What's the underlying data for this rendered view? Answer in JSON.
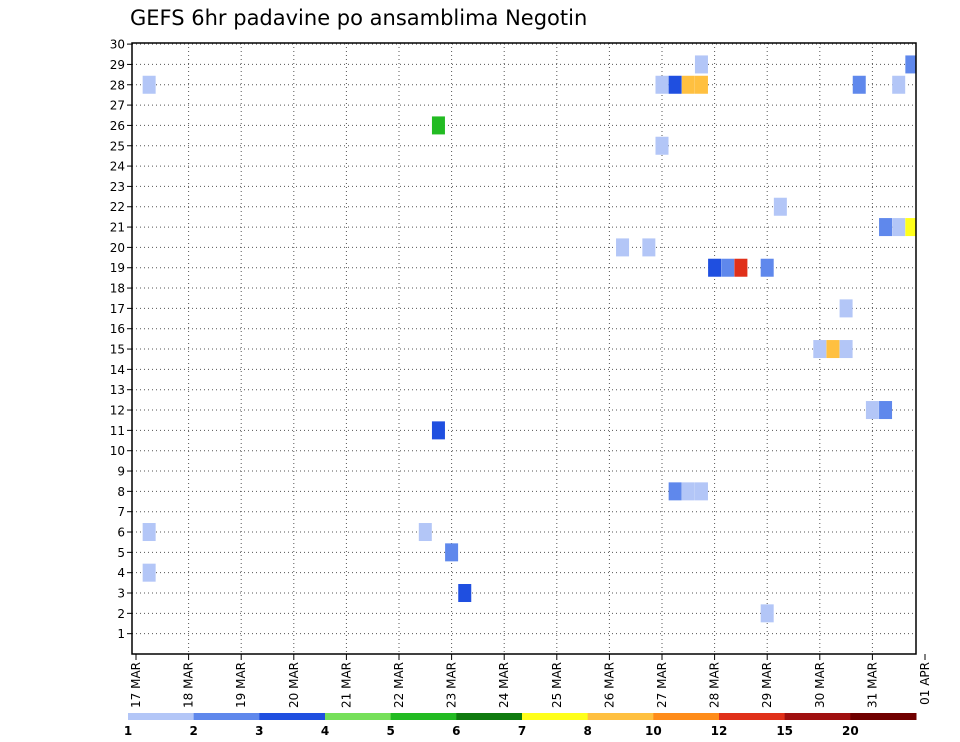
{
  "chart_data": {
    "type": "heatmap",
    "title": "GEFS 6hr padavine po ansamblima Negotin",
    "y_tick_labels": [
      "1",
      "2",
      "3",
      "4",
      "5",
      "6",
      "7",
      "8",
      "9",
      "10",
      "11",
      "12",
      "13",
      "14",
      "15",
      "16",
      "17",
      "18",
      "19",
      "20",
      "21",
      "22",
      "23",
      "24",
      "25",
      "26",
      "27",
      "28",
      "29",
      "30"
    ],
    "x_tick_labels": [
      "17 MAR",
      "18 MAR",
      "19 MAR",
      "20 MAR",
      "21 MAR",
      "22 MAR",
      "23 MAR",
      "24 MAR",
      "25 MAR",
      "26 MAR",
      "27 MAR",
      "28 MAR",
      "29 MAR",
      "30 MAR",
      "31 MAR",
      "01 APR"
    ],
    "x_range_days": [
      0,
      15
    ],
    "y_range": [
      0,
      30
    ],
    "grid": true,
    "colorbar": {
      "colors": [
        "#b3c6f7",
        "#5f88ec",
        "#1f4fe0",
        "#76e05a",
        "#22bb22",
        "#0f7a0f",
        "#ffff1a",
        "#ffc040",
        "#ff8c1a",
        "#e0301a",
        "#a01010",
        "#700000"
      ],
      "labels": [
        "1",
        "2",
        "3",
        "4",
        "5",
        "6",
        "7",
        "8",
        "10",
        "12",
        "15",
        "20"
      ]
    },
    "cells": [
      {
        "member": 4,
        "day": 0.25,
        "color": "#b3c6f7"
      },
      {
        "member": 6,
        "day": 0.25,
        "color": "#b3c6f7"
      },
      {
        "member": 28,
        "day": 0.25,
        "color": "#b3c6f7"
      },
      {
        "member": 6,
        "day": 5.5,
        "color": "#b3c6f7"
      },
      {
        "member": 26,
        "day": 5.75,
        "color": "#22bb22"
      },
      {
        "member": 11,
        "day": 5.75,
        "color": "#1f4fe0"
      },
      {
        "member": 5,
        "day": 6.0,
        "color": "#5f88ec"
      },
      {
        "member": 3,
        "day": 6.25,
        "color": "#1f4fe0"
      },
      {
        "member": 20,
        "day": 9.25,
        "color": "#b3c6f7"
      },
      {
        "member": 20,
        "day": 9.75,
        "color": "#b3c6f7"
      },
      {
        "member": 28,
        "day": 10.0,
        "color": "#b3c6f7"
      },
      {
        "member": 25,
        "day": 10.0,
        "color": "#b3c6f7"
      },
      {
        "member": 8,
        "day": 10.25,
        "color": "#5f88ec"
      },
      {
        "member": 8,
        "day": 10.5,
        "color": "#b3c6f7"
      },
      {
        "member": 8,
        "day": 10.75,
        "color": "#b3c6f7"
      },
      {
        "member": 28,
        "day": 10.25,
        "color": "#1f4fe0"
      },
      {
        "member": 28,
        "day": 10.5,
        "color": "#ffc040"
      },
      {
        "member": 28,
        "day": 10.75,
        "color": "#ffc040"
      },
      {
        "member": 29,
        "day": 10.75,
        "color": "#b3c6f7"
      },
      {
        "member": 19,
        "day": 11.0,
        "color": "#1f4fe0"
      },
      {
        "member": 19,
        "day": 11.25,
        "color": "#5f88ec"
      },
      {
        "member": 19,
        "day": 11.5,
        "color": "#e0301a"
      },
      {
        "member": 19,
        "day": 12.0,
        "color": "#5f88ec"
      },
      {
        "member": 2,
        "day": 12.0,
        "color": "#b3c6f7"
      },
      {
        "member": 22,
        "day": 12.25,
        "color": "#b3c6f7"
      },
      {
        "member": 15,
        "day": 13.0,
        "color": "#b3c6f7"
      },
      {
        "member": 15,
        "day": 13.25,
        "color": "#ffc040"
      },
      {
        "member": 15,
        "day": 13.5,
        "color": "#b3c6f7"
      },
      {
        "member": 17,
        "day": 13.5,
        "color": "#b3c6f7"
      },
      {
        "member": 28,
        "day": 13.75,
        "color": "#5f88ec"
      },
      {
        "member": 12,
        "day": 14.0,
        "color": "#b3c6f7"
      },
      {
        "member": 12,
        "day": 14.25,
        "color": "#5f88ec"
      },
      {
        "member": 21,
        "day": 14.25,
        "color": "#5f88ec"
      },
      {
        "member": 21,
        "day": 14.5,
        "color": "#b3c6f7"
      },
      {
        "member": 21,
        "day": 14.75,
        "color": "#ffff1a"
      },
      {
        "member": 21,
        "day": 15.0,
        "color": "#22bb22"
      },
      {
        "member": 28,
        "day": 14.5,
        "color": "#b3c6f7"
      },
      {
        "member": 29,
        "day": 14.75,
        "color": "#5f88ec"
      },
      {
        "member": 28,
        "day": 15.0,
        "color": "#a01010"
      },
      {
        "member": 16,
        "day": 15.0,
        "color": "#5f88ec"
      },
      {
        "member": 10,
        "day": 15.0,
        "color": "#b3c6f7"
      },
      {
        "member": 2,
        "day": 15.0,
        "color": "#b3c6f7"
      }
    ]
  }
}
